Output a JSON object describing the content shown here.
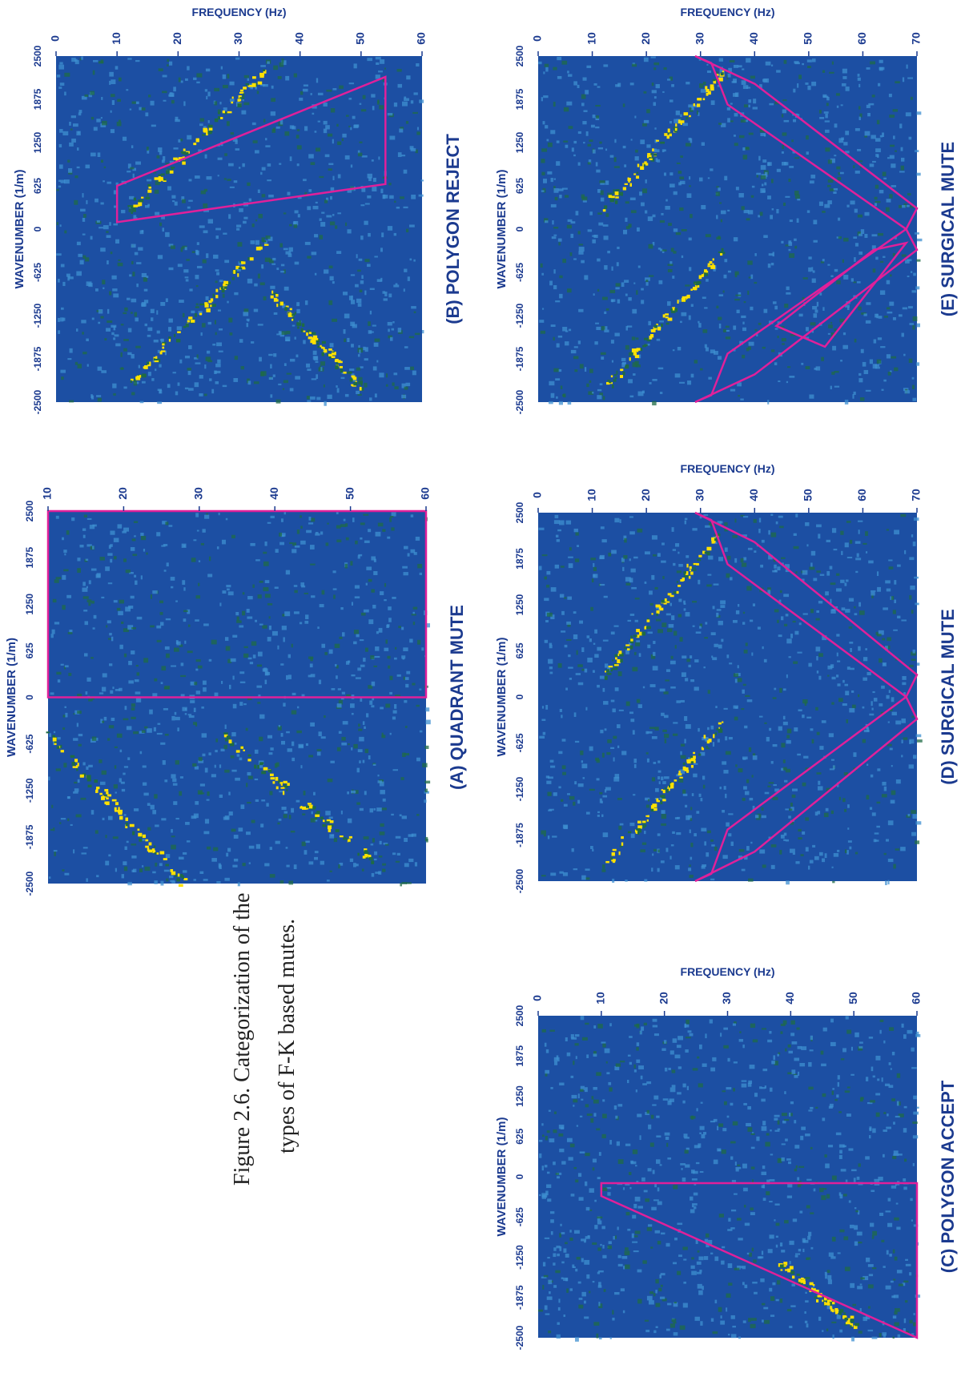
{
  "figure": {
    "caption_line1": "Figure 2.6.   Categorization of the",
    "caption_line2": "types of F-K based mutes."
  },
  "colors": {
    "background": "#1c4fa3",
    "speckle_light": "#3d8fd0",
    "speckle_dark": "#1f6b45",
    "highlight": "#ffe100",
    "mute_outline": "#e0209a",
    "axis_text": "#1b3a8f"
  },
  "chart_data": [
    {
      "type": "heatmap",
      "panel": "A",
      "title": "(A) QUADRANT MUTE",
      "xlabel": "WAVENUMBER  (1/m)",
      "ylabel": "",
      "x_ticks": [
        "-2500",
        "-1875",
        "-1250",
        "-625",
        "0",
        "625",
        "1250",
        "1875",
        "2500"
      ],
      "y_ticks": [
        "10",
        "20",
        "30",
        "40",
        "50",
        "60"
      ],
      "xlim": [
        -2500,
        2500
      ],
      "ylim": [
        10,
        60
      ],
      "mute_polygon": [
        [
          0,
          10
        ],
        [
          2500,
          10
        ],
        [
          2500,
          60
        ],
        [
          0,
          60
        ]
      ],
      "energy_trends": [
        [
          [
            -2500,
            28
          ],
          [
            -500,
            10
          ]
        ],
        [
          [
            -2200,
            53
          ],
          [
            -500,
            33
          ]
        ]
      ]
    },
    {
      "type": "heatmap",
      "panel": "B",
      "title": "(B) POLYGON REJECT",
      "xlabel": "WAVENUMBER   (1/m)",
      "ylabel": "FREQUENCY (Hz)",
      "x_ticks": [
        "-2500",
        "-1875",
        "-1250",
        "-625",
        "0",
        "625",
        "1250",
        "1875",
        "2500"
      ],
      "y_ticks": [
        "0",
        "10",
        "20",
        "30",
        "40",
        "50",
        "60"
      ],
      "xlim": [
        -2500,
        2500
      ],
      "ylim": [
        0,
        60
      ],
      "mute_polygon": [
        [
          100,
          10
        ],
        [
          625,
          10
        ],
        [
          2200,
          54
        ],
        [
          650,
          54
        ]
      ],
      "energy_trends": [
        [
          [
            -2200,
            12
          ],
          [
            -200,
            34
          ]
        ],
        [
          [
            300,
            12
          ],
          [
            2300,
            34
          ]
        ],
        [
          [
            -2300,
            50
          ],
          [
            -900,
            35
          ]
        ]
      ]
    },
    {
      "type": "heatmap",
      "panel": "C",
      "title": "(C) POLYGON ACCEPT",
      "xlabel": "WAVENUMBER   (1/m)",
      "ylabel": "FREQUENCY (Hz)",
      "x_ticks": [
        "-2500",
        "-1875",
        "-1250",
        "-625",
        "0",
        "625",
        "1250",
        "1875",
        "2500"
      ],
      "y_ticks": [
        "0",
        "10",
        "20",
        "30",
        "40",
        "50",
        "60"
      ],
      "xlim": [
        -2500,
        2500
      ],
      "ylim": [
        0,
        60
      ],
      "mute_polygon": [
        [
          -100,
          10
        ],
        [
          -100,
          60
        ],
        [
          -2500,
          60
        ],
        [
          -300,
          10
        ]
      ],
      "energy_trends": [
        [
          [
            -2300,
            50
          ],
          [
            -1300,
            38
          ]
        ]
      ]
    },
    {
      "type": "heatmap",
      "panel": "D",
      "title": "(D) SURGICAL MUTE",
      "xlabel": "WAVENUMBER  (1/m)",
      "ylabel": "FREQUENCY (Hz)",
      "x_ticks": [
        "-2500",
        "-1875",
        "-1250",
        "-625",
        "0",
        "625",
        "1250",
        "1875",
        "2500"
      ],
      "y_ticks": [
        "0",
        "10",
        "20",
        "30",
        "40",
        "50",
        "60",
        "70"
      ],
      "xlim": [
        -2500,
        2500
      ],
      "ylim": [
        0,
        70
      ],
      "mute_polygon": [
        [
          -2500,
          29
        ],
        [
          -2100,
          40
        ],
        [
          -300,
          70
        ],
        [
          0,
          68
        ],
        [
          -1800,
          35
        ],
        [
          -2400,
          32
        ]
      ],
      "mute_polygon_2": [
        [
          2500,
          29
        ],
        [
          2100,
          40
        ],
        [
          300,
          70
        ],
        [
          0,
          68
        ],
        [
          1800,
          35
        ],
        [
          2400,
          32
        ]
      ],
      "energy_trends": [
        [
          [
            -2300,
            12
          ],
          [
            -300,
            34
          ]
        ],
        [
          [
            300,
            12
          ],
          [
            2300,
            34
          ]
        ]
      ]
    },
    {
      "type": "heatmap",
      "panel": "E",
      "title": "(E) SURGICAL MUTE",
      "xlabel": "WAVENUMBER   (1/m)",
      "ylabel": "FREQUENCY (Hz)",
      "x_ticks": [
        "-2500",
        "-1875",
        "-1250",
        "-625",
        "0",
        "625",
        "1250",
        "1875",
        "2500"
      ],
      "y_ticks": [
        "0",
        "10",
        "20",
        "30",
        "40",
        "50",
        "60",
        "70"
      ],
      "xlim": [
        -2500,
        2500
      ],
      "ylim": [
        0,
        70
      ],
      "mute_polygon": [
        [
          -2500,
          29
        ],
        [
          -2100,
          40
        ],
        [
          -300,
          70
        ],
        [
          0,
          68
        ],
        [
          -1800,
          35
        ],
        [
          -2400,
          32
        ]
      ],
      "mute_polygon_2": [
        [
          2500,
          29
        ],
        [
          2100,
          40
        ],
        [
          300,
          70
        ],
        [
          0,
          68
        ],
        [
          1800,
          35
        ],
        [
          2400,
          32
        ]
      ],
      "mute_polygon_3": [
        [
          -1400,
          44
        ],
        [
          -1700,
          53
        ],
        [
          -200,
          68
        ],
        [
          -300,
          62
        ]
      ],
      "energy_trends": [
        [
          [
            -2300,
            12
          ],
          [
            -300,
            34
          ]
        ],
        [
          [
            300,
            12
          ],
          [
            2300,
            34
          ]
        ]
      ]
    }
  ]
}
